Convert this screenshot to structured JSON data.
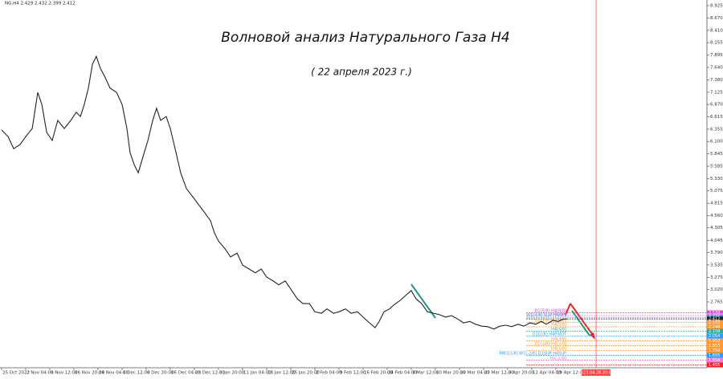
{
  "chart_data": {
    "type": "line",
    "title": "Волновой анализ Натурального Газа H4",
    "subtitle": "( 22 апреля 2023 г.)",
    "info": "NG,H4  2.429 2.432 2.399 2.412",
    "color": "#222222",
    "x": [
      0,
      0.27,
      0.5,
      0.77,
      1,
      1.27,
      1.5,
      1.67,
      1.87,
      2.1,
      2.33,
      2.6,
      2.87,
      3.1,
      3.27,
      3.43,
      3.6,
      3.77,
      3.93,
      4.1,
      4.27,
      4.5,
      4.77,
      5,
      5.2,
      5.33,
      5.5,
      5.67,
      5.87,
      6.07,
      6.27,
      6.43,
      6.6,
      6.83,
      7,
      7.2,
      7.43,
      7.67,
      7.93,
      8.17,
      8.43,
      8.67,
      8.83,
      9,
      9.27,
      9.5,
      9.77,
      10,
      10.27,
      10.53,
      10.77,
      11,
      11.27,
      11.5,
      11.77,
      12,
      12.27,
      12.5,
      12.77,
      13,
      13.27,
      13.5,
      13.77,
      14,
      14.27,
      14.5,
      14.77,
      15,
      15.27,
      15.5,
      15.67,
      15.87,
      16.1,
      16.27,
      16.5,
      16.77,
      17,
      17.2,
      17.43,
      17.67,
      17.93,
      18.17,
      18.43,
      18.67,
      18.93,
      19.17,
      19.43,
      19.67,
      19.93,
      20.17,
      20.43,
      20.67,
      20.93,
      21.17,
      21.43,
      21.67,
      21.93,
      22.17,
      22.4,
      22.6,
      22.87,
      23.1,
      23.33,
      23.47
    ],
    "values": [
      6.34,
      6.2,
      5.95,
      6.04,
      6.2,
      6.37,
      7.12,
      6.87,
      6.29,
      6.12,
      6.54,
      6.37,
      6.54,
      6.71,
      6.62,
      6.87,
      7.21,
      7.71,
      7.87,
      7.62,
      7.46,
      7.21,
      7.12,
      6.87,
      6.37,
      5.87,
      5.62,
      5.45,
      5.79,
      6.12,
      6.54,
      6.79,
      6.54,
      6.62,
      6.37,
      5.95,
      5.45,
      5.12,
      4.95,
      4.79,
      4.62,
      4.45,
      4.2,
      4.03,
      3.87,
      3.7,
      3.78,
      3.53,
      3.45,
      3.37,
      3.45,
      3.28,
      3.2,
      3.12,
      3.2,
      3.03,
      2.83,
      2.73,
      2.73,
      2.56,
      2.53,
      2.62,
      2.53,
      2.56,
      2.62,
      2.53,
      2.56,
      2.45,
      2.33,
      2.23,
      2.36,
      2.56,
      2.62,
      2.7,
      2.78,
      2.9,
      3.0,
      2.83,
      2.73,
      2.56,
      2.53,
      2.5,
      2.45,
      2.48,
      2.41,
      2.33,
      2.36,
      2.3,
      2.26,
      2.25,
      2.2,
      2.26,
      2.28,
      2.25,
      2.3,
      2.26,
      2.33,
      2.3,
      2.36,
      2.3,
      2.38,
      2.36,
      2.41,
      2.41
    ],
    "xlim": [
      0,
      29.27
    ],
    "ylim": [
      1.396,
      9.042
    ],
    "xticks": [
      {
        "value": 0,
        "label": "25 Oct 2022"
      },
      {
        "value": 1,
        "label": "2 Nov 04:00"
      },
      {
        "value": 2,
        "label": "9 Nov 12:00"
      },
      {
        "value": 3,
        "label": "16 Nov 20:00"
      },
      {
        "value": 4,
        "label": "24 Nov 04:00"
      },
      {
        "value": 5,
        "label": "1 Dec 12:00"
      },
      {
        "value": 6,
        "label": "8 Dec 20:00"
      },
      {
        "value": 7,
        "label": "16 Dec 04:00"
      },
      {
        "value": 8,
        "label": "23 Dec 12:00"
      },
      {
        "value": 9,
        "label": "3 Jan 20:00"
      },
      {
        "value": 10,
        "label": "11 Jan 04:00"
      },
      {
        "value": 11,
        "label": "18 Jan 12:00"
      },
      {
        "value": 12,
        "label": "25 Jan 20:00"
      },
      {
        "value": 13,
        "label": "2 Feb 04:00"
      },
      {
        "value": 14,
        "label": "9 Feb 12:00"
      },
      {
        "value": 15,
        "label": "16 Feb 20:00"
      },
      {
        "value": 16,
        "label": "24 Feb 04:00"
      },
      {
        "value": 17,
        "label": "3 Mar 12:00"
      },
      {
        "value": 18,
        "label": "10 Mar 20:00"
      },
      {
        "value": 19,
        "label": "20 Mar 04:00"
      },
      {
        "value": 20,
        "label": "27 Mar 12:00"
      },
      {
        "value": 21,
        "label": "3 Apr 20:00"
      },
      {
        "value": 22,
        "label": "12 Apr 04:00"
      },
      {
        "value": 23,
        "label": "19 Apr 12:00"
      }
    ],
    "yticks": [
      8.925,
      {
        "value": 8.67,
        "label": "8.670"
      },
      {
        "value": 8.41,
        "label": "8.410"
      },
      8.155,
      7.895,
      {
        "value": 7.64,
        "label": "7.640"
      },
      {
        "value": 7.38,
        "label": "7.380"
      },
      7.125,
      {
        "value": 6.87,
        "label": "6.870"
      },
      6.615,
      6.355,
      {
        "value": 6.1,
        "label": "6.100"
      },
      5.845,
      5.585,
      {
        "value": 5.33,
        "label": "5.330"
      },
      5.075,
      4.815,
      {
        "value": 4.56,
        "label": "4.560"
      },
      4.305,
      4.045,
      {
        "value": 3.79,
        "label": "3.790"
      },
      3.535,
      3.275,
      {
        "value": 3.02,
        "label": "3.020"
      },
      2.765
    ],
    "levels": [
      {
        "value": 2.539,
        "color": "#e040e0",
        "label": "D1[5/8] H4[8/8]"
      },
      {
        "value": 2.483,
        "color": "#ff77cc",
        "label": "H4[7/8]"
      },
      {
        "value": 2.446,
        "color": "#3399ff",
        "label": "W1[4/8] SUP H4RES"
      },
      {
        "value": 2.412,
        "color": "#222222"
      },
      {
        "value": 2.339,
        "color": "#ff9933",
        "label": "D1[3/8] H4[6/8]"
      },
      {
        "value": 2.248,
        "color": "#ff9933",
        "label": "H4[5/8]"
      },
      {
        "value": 2.158,
        "color": "#33aa99",
        "label": "H4[4/8]"
      },
      {
        "value": 2.054,
        "color": "#3399ff",
        "label": "D1[2/8] H4PIVOT"
      },
      {
        "value": 1.953,
        "color": "#ff9933",
        "label": "H4[3/8]"
      },
      {
        "value": 1.853,
        "color": "#ff9933",
        "label": "D1[1/8] H4[2/8]"
      },
      {
        "value": 1.754,
        "color": "#ff9933",
        "label": "H4[1/8]"
      },
      {
        "value": 1.655,
        "color": "#3399ff",
        "label": "MN1[1/8] W1[-2/8] D1SUP H4SUP"
      },
      {
        "value": 1.554,
        "color": "#ff77cc",
        "label": "H4[-1/8]"
      },
      {
        "value": 1.455,
        "color": "#ee2222"
      }
    ],
    "vline": {
      "x": 24.67,
      "color": "#ff4444",
      "label": "2023.04.28 20:00"
    }
  }
}
